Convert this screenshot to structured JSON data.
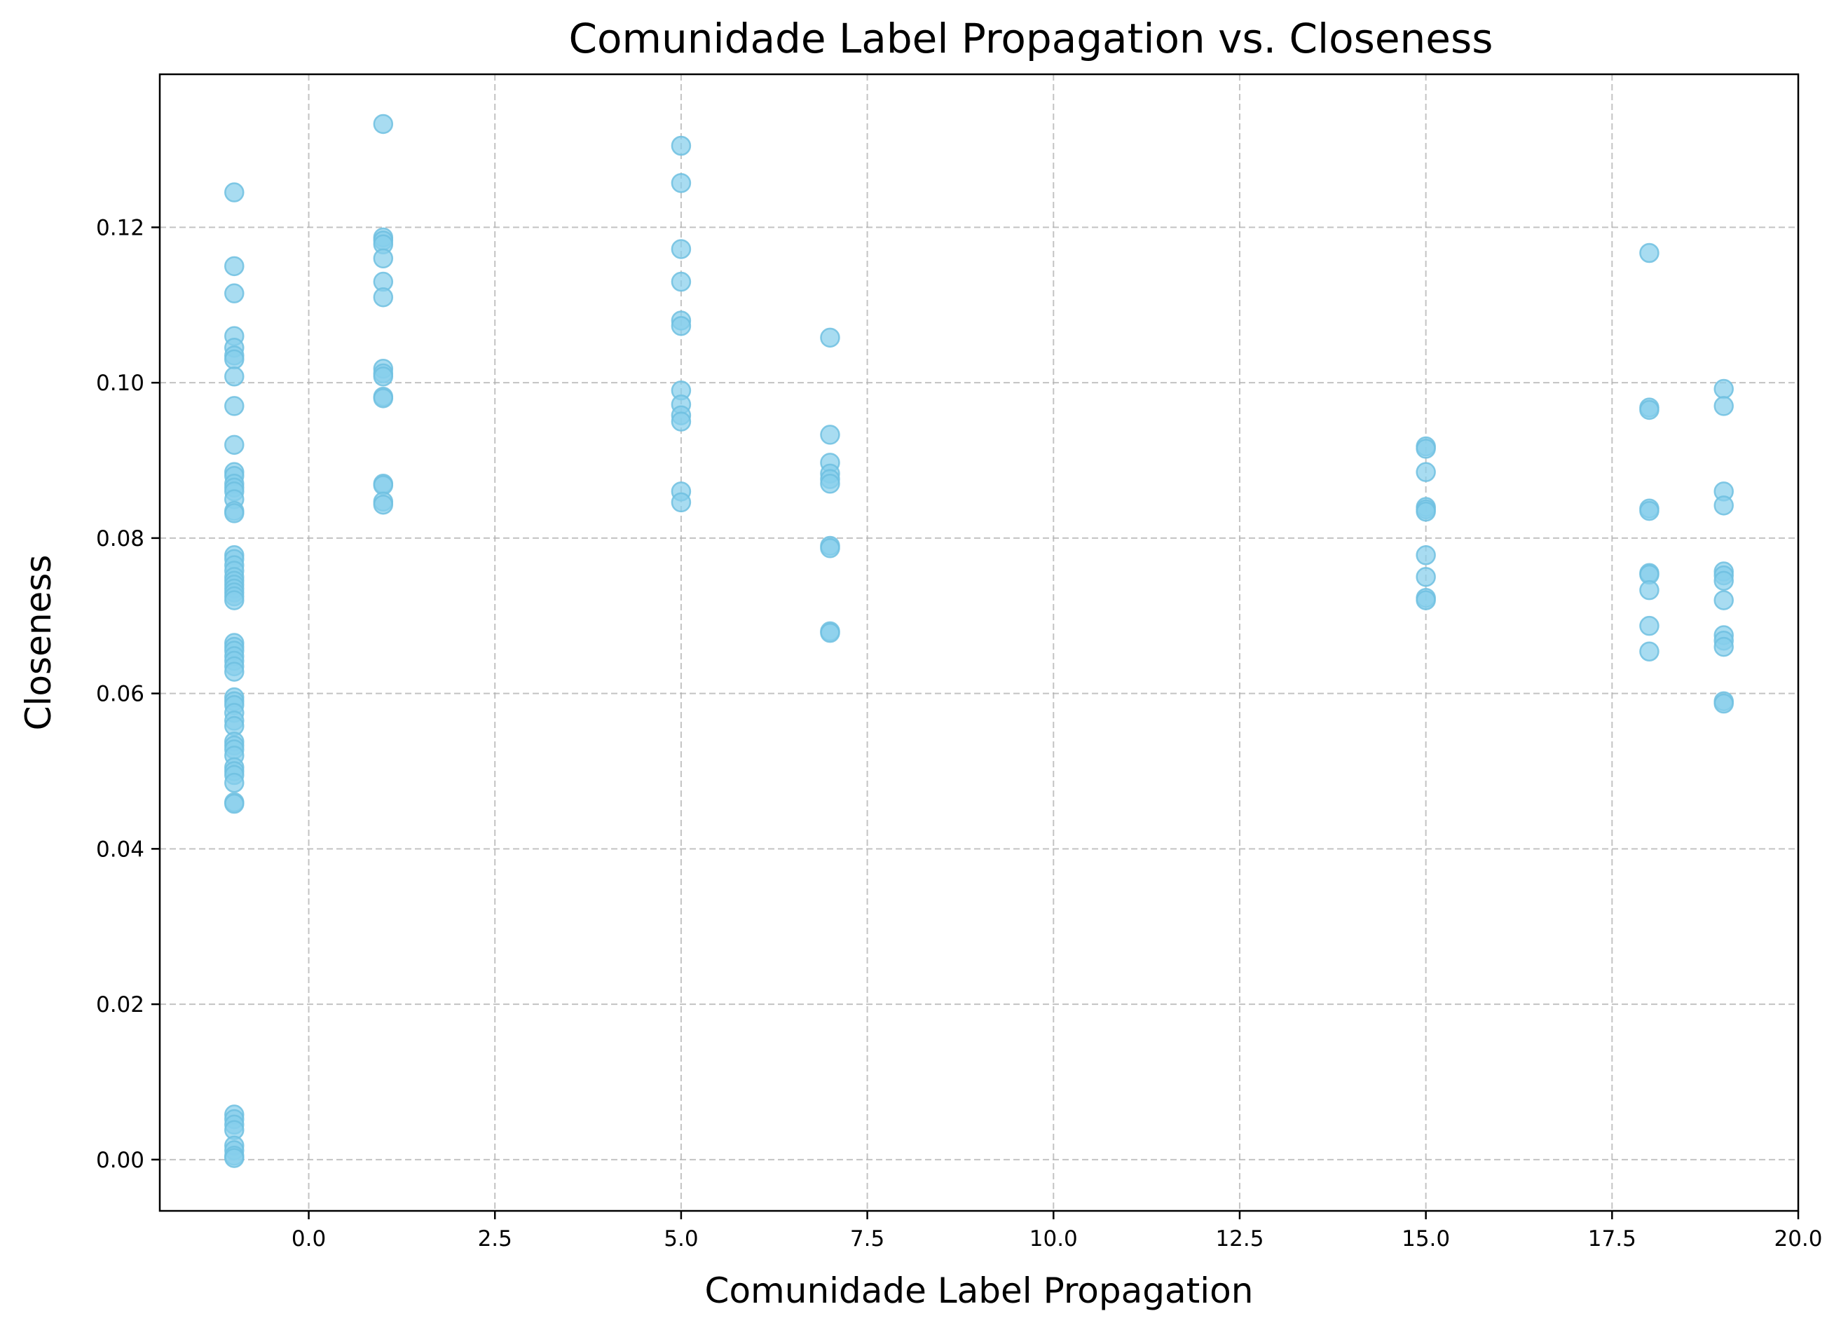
{
  "colors": {
    "marker": "#87ceeb",
    "grid": "#b0b0b0",
    "axis": "#000000"
  },
  "chart_data": {
    "type": "scatter",
    "title": "Comunidade Label Propagation vs. Closeness",
    "xlabel": "Comunidade Label Propagation",
    "ylabel": "Closeness",
    "xlim": [
      -2.0,
      20.0
    ],
    "ylim": [
      -0.0066,
      0.1397
    ],
    "grid": true,
    "xticks": [
      0.0,
      2.5,
      5.0,
      7.5,
      10.0,
      12.5,
      15.0,
      17.5,
      20.0
    ],
    "xtick_labels": [
      "0.0",
      "2.5",
      "5.0",
      "7.5",
      "10.0",
      "12.5",
      "15.0",
      "17.5",
      "20.0"
    ],
    "yticks": [
      0.0,
      0.02,
      0.04,
      0.06,
      0.08,
      0.1,
      0.12
    ],
    "ytick_labels": [
      "0.00",
      "0.02",
      "0.04",
      "0.06",
      "0.08",
      "0.10",
      "0.12"
    ],
    "points": [
      [
        -1,
        0.1245
      ],
      [
        -1,
        0.115
      ],
      [
        -1,
        0.1115
      ],
      [
        -1,
        0.106
      ],
      [
        -1,
        0.1045
      ],
      [
        -1,
        0.1035
      ],
      [
        -1,
        0.103
      ],
      [
        -1,
        0.1008
      ],
      [
        -1,
        0.097
      ],
      [
        -1,
        0.092
      ],
      [
        -1,
        0.0885
      ],
      [
        -1,
        0.088
      ],
      [
        -1,
        0.087
      ],
      [
        -1,
        0.0865
      ],
      [
        -1,
        0.086
      ],
      [
        -1,
        0.085
      ],
      [
        -1,
        0.0835
      ],
      [
        -1,
        0.0832
      ],
      [
        -1,
        0.0778
      ],
      [
        -1,
        0.0773
      ],
      [
        -1,
        0.0765
      ],
      [
        -1,
        0.0758
      ],
      [
        -1,
        0.075
      ],
      [
        -1,
        0.0745
      ],
      [
        -1,
        0.074
      ],
      [
        -1,
        0.0735
      ],
      [
        -1,
        0.073
      ],
      [
        -1,
        0.0725
      ],
      [
        -1,
        0.072
      ],
      [
        -1,
        0.0665
      ],
      [
        -1,
        0.066
      ],
      [
        -1,
        0.0655
      ],
      [
        -1,
        0.0648
      ],
      [
        -1,
        0.0642
      ],
      [
        -1,
        0.0635
      ],
      [
        -1,
        0.0628
      ],
      [
        -1,
        0.0595
      ],
      [
        -1,
        0.059
      ],
      [
        -1,
        0.0585
      ],
      [
        -1,
        0.0575
      ],
      [
        -1,
        0.0565
      ],
      [
        -1,
        0.0558
      ],
      [
        -1,
        0.0538
      ],
      [
        -1,
        0.0533
      ],
      [
        -1,
        0.0528
      ],
      [
        -1,
        0.052
      ],
      [
        -1,
        0.0505
      ],
      [
        -1,
        0.05
      ],
      [
        -1,
        0.0495
      ],
      [
        -1,
        0.0485
      ],
      [
        -1,
        0.046
      ],
      [
        -1,
        0.0458
      ],
      [
        -1,
        0.0058
      ],
      [
        -1,
        0.0052
      ],
      [
        -1,
        0.0045
      ],
      [
        -1,
        0.0038
      ],
      [
        -1,
        0.0018
      ],
      [
        -1,
        0.0012
      ],
      [
        -1,
        0.0005
      ],
      [
        -1,
        0.0002
      ],
      [
        1,
        0.1333
      ],
      [
        1,
        0.1187
      ],
      [
        1,
        0.1183
      ],
      [
        1,
        0.1178
      ],
      [
        1,
        0.116
      ],
      [
        1,
        0.113
      ],
      [
        1,
        0.111
      ],
      [
        1,
        0.1018
      ],
      [
        1,
        0.1012
      ],
      [
        1,
        0.1008
      ],
      [
        1,
        0.0982
      ],
      [
        1,
        0.098
      ],
      [
        1,
        0.087
      ],
      [
        1,
        0.0868
      ],
      [
        1,
        0.0847
      ],
      [
        1,
        0.0843
      ],
      [
        5,
        0.1305
      ],
      [
        5,
        0.1257
      ],
      [
        5,
        0.1172
      ],
      [
        5,
        0.113
      ],
      [
        5,
        0.108
      ],
      [
        5,
        0.1073
      ],
      [
        5,
        0.099
      ],
      [
        5,
        0.0972
      ],
      [
        5,
        0.0958
      ],
      [
        5,
        0.095
      ],
      [
        5,
        0.086
      ],
      [
        5,
        0.0846
      ],
      [
        7,
        0.1058
      ],
      [
        7,
        0.0933
      ],
      [
        7,
        0.0897
      ],
      [
        7,
        0.0883
      ],
      [
        7,
        0.0876
      ],
      [
        7,
        0.087
      ],
      [
        7,
        0.079
      ],
      [
        7,
        0.0787
      ],
      [
        7,
        0.068
      ],
      [
        7,
        0.0678
      ],
      [
        15,
        0.0918
      ],
      [
        15,
        0.0915
      ],
      [
        15,
        0.0885
      ],
      [
        15,
        0.084
      ],
      [
        15,
        0.0837
      ],
      [
        15,
        0.0834
      ],
      [
        15,
        0.0778
      ],
      [
        15,
        0.075
      ],
      [
        15,
        0.0723
      ],
      [
        15,
        0.072
      ],
      [
        18,
        0.1167
      ],
      [
        18,
        0.0968
      ],
      [
        18,
        0.0965
      ],
      [
        18,
        0.0838
      ],
      [
        18,
        0.0835
      ],
      [
        18,
        0.0755
      ],
      [
        18,
        0.0753
      ],
      [
        18,
        0.0733
      ],
      [
        18,
        0.0687
      ],
      [
        18,
        0.0654
      ],
      [
        19,
        0.0992
      ],
      [
        19,
        0.097
      ],
      [
        19,
        0.086
      ],
      [
        19,
        0.0842
      ],
      [
        19,
        0.0757
      ],
      [
        19,
        0.0752
      ],
      [
        19,
        0.0745
      ],
      [
        19,
        0.072
      ],
      [
        19,
        0.0675
      ],
      [
        19,
        0.0668
      ],
      [
        19,
        0.066
      ],
      [
        19,
        0.059
      ],
      [
        19,
        0.0587
      ]
    ]
  }
}
